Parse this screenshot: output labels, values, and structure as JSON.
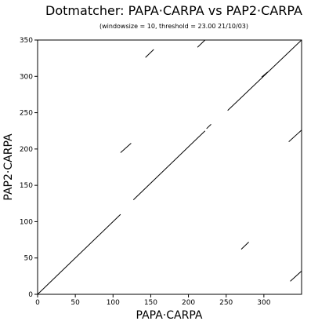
{
  "chart_data": {
    "type": "scatter",
    "title": "Dotmatcher: PAPA·CARPA vs PAP2·CARPA",
    "subtitle": "(windowsize = 10, threshold = 23.00  21/10/03)",
    "xlabel": "PAPA·CARPA",
    "ylabel": "PAP2·CARPA",
    "xlim": [
      0,
      350
    ],
    "ylim": [
      0,
      350
    ],
    "xticks": [
      0,
      50,
      100,
      150,
      200,
      250,
      300
    ],
    "yticks": [
      0,
      50,
      100,
      150,
      200,
      250,
      300,
      350
    ],
    "line_color": "#000000",
    "segments": [
      {
        "x1": 0,
        "y1": 0,
        "x2": 110,
        "y2": 110
      },
      {
        "x1": 127,
        "y1": 130,
        "x2": 222,
        "y2": 225
      },
      {
        "x1": 224,
        "y1": 228,
        "x2": 230,
        "y2": 234
      },
      {
        "x1": 252,
        "y1": 253,
        "x2": 350,
        "y2": 350
      },
      {
        "x1": 297,
        "y1": 299,
        "x2": 305,
        "y2": 306
      },
      {
        "x1": 143,
        "y1": 326,
        "x2": 154,
        "y2": 337
      },
      {
        "x1": 212,
        "y1": 340,
        "x2": 222,
        "y2": 350
      },
      {
        "x1": 110,
        "y1": 195,
        "x2": 124,
        "y2": 208
      },
      {
        "x1": 270,
        "y1": 62,
        "x2": 280,
        "y2": 72
      },
      {
        "x1": 333,
        "y1": 210,
        "x2": 350,
        "y2": 226
      },
      {
        "x1": 335,
        "y1": 18,
        "x2": 350,
        "y2": 32
      }
    ]
  }
}
